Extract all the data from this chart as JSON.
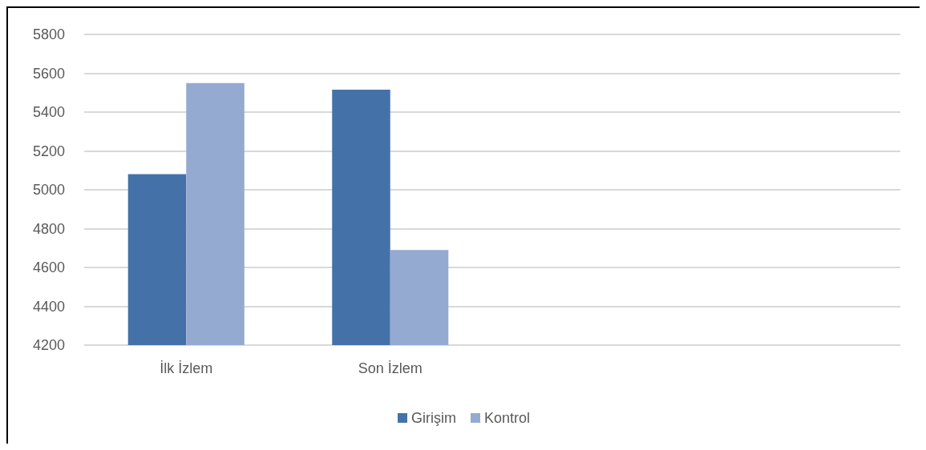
{
  "chart_data": {
    "type": "bar",
    "categories": [
      "İlk İzlem",
      "Son İzlem",
      null,
      null
    ],
    "series": [
      {
        "name": "Girişim",
        "color": "#4472a8",
        "values": [
          5080,
          5515,
          null,
          null
        ]
      },
      {
        "name": "Kontrol",
        "color": "#95aad1",
        "values": [
          5550,
          4690,
          null,
          null
        ]
      }
    ],
    "ylim": [
      4200,
      5800
    ],
    "yticks": [
      4200,
      4400,
      4600,
      4800,
      5000,
      5200,
      5400,
      5600,
      5800
    ],
    "grid": "y",
    "legend": "bottom"
  }
}
